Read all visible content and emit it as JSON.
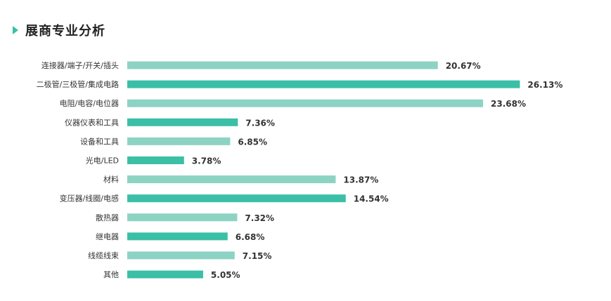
{
  "header": {
    "title": "展商专业分析"
  },
  "colors": {
    "light": "#8dd3c3",
    "dark": "#3bbfa6",
    "accent": "#3bbfa6"
  },
  "chart_data": {
    "type": "bar",
    "orientation": "horizontal",
    "title": "展商专业分析",
    "categories": [
      "连接器/端子/开关/插头",
      "二极管/三极管/集成电路",
      "电阻/电容/电位器",
      "仪器仪表和工具",
      "设备和工具",
      "光电/LED",
      "材料",
      "变压器/线圈/电感",
      "散热器",
      "继电器",
      "线缆线束",
      "其他"
    ],
    "values": [
      20.67,
      26.13,
      23.68,
      7.36,
      6.85,
      3.78,
      13.87,
      14.54,
      7.32,
      6.68,
      7.15,
      5.05
    ],
    "value_labels": [
      "20.67%",
      "26.13%",
      "23.68%",
      "7.36%",
      "6.85%",
      "3.78%",
      "13.87%",
      "14.54%",
      "7.32%",
      "6.68%",
      "7.15%",
      "5.05%"
    ],
    "unit": "%",
    "grid": false,
    "legend": "none"
  }
}
